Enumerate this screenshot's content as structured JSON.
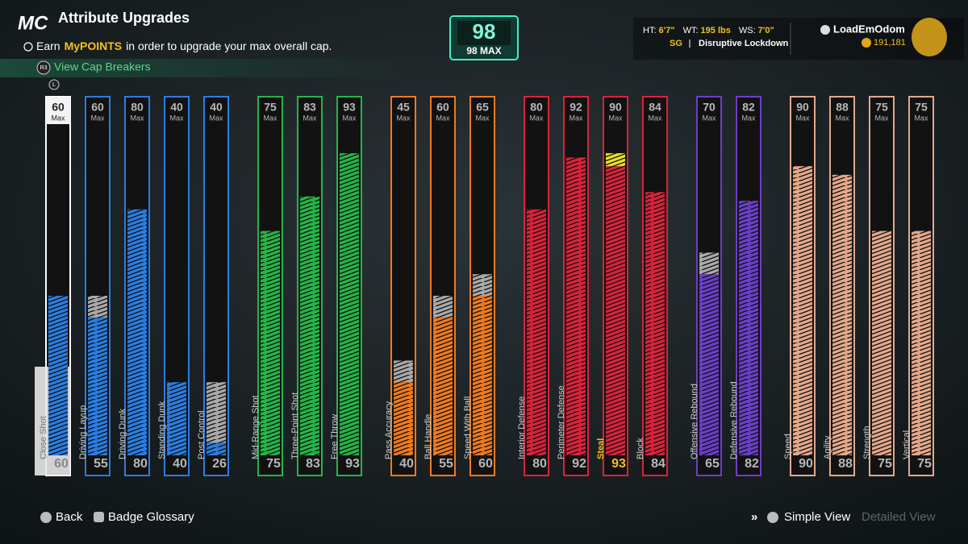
{
  "header": {
    "logo": "MC",
    "title": "Attribute Upgrades",
    "info": [
      "Earn",
      "MyPOINTS",
      "in order to upgrade your max overall cap."
    ],
    "cap_breakers": {
      "icon": "R3",
      "label": "View Cap Breakers"
    },
    "bumper": "L"
  },
  "overall": {
    "value": 98,
    "label": "98 MAX"
  },
  "player": {
    "height_label": "HT:",
    "height": "6'7\"",
    "weight_label": "WT:",
    "weight": "195 lbs",
    "wingspan_label": "WS:",
    "wingspan": "7'0\"",
    "position": "SG",
    "archetype": "Disruptive Lockdown",
    "name": "LoadEmOdom",
    "currency": "191,181"
  },
  "max_label": "Max",
  "groups": [
    {
      "color": "#2a7de1",
      "attributes": [
        {
          "name": "Close Shot",
          "max": 60,
          "current": 60
        },
        {
          "name": "Driving Layup",
          "max": 60,
          "current": 55
        },
        {
          "name": "Driving Dunk",
          "max": 80,
          "current": 80
        },
        {
          "name": "Standing Dunk",
          "max": 40,
          "current": 40
        },
        {
          "name": "Post Control",
          "max": 40,
          "current": 26
        }
      ]
    },
    {
      "color": "#25b548",
      "attributes": [
        {
          "name": "Mid-Range Shot",
          "max": 75,
          "current": 75
        },
        {
          "name": "Three-Point Shot",
          "max": 83,
          "current": 83
        },
        {
          "name": "Free Throw",
          "max": 93,
          "current": 93
        }
      ]
    },
    {
      "color": "#ef7a1f",
      "attributes": [
        {
          "name": "Pass Accuracy",
          "max": 45,
          "current": 40
        },
        {
          "name": "Ball Handle",
          "max": 60,
          "current": 55
        },
        {
          "name": "Speed With Ball",
          "max": 65,
          "current": 60
        }
      ]
    },
    {
      "color": "#d9233a",
      "attributes": [
        {
          "name": "Interior Defense",
          "max": 80,
          "current": 80
        },
        {
          "name": "Perimeter Defense",
          "max": 92,
          "current": 92
        },
        {
          "name": "Steal",
          "max": 90,
          "current": 93
        },
        {
          "name": "Block",
          "max": 84,
          "current": 84
        }
      ]
    },
    {
      "color": "#6b3ec9",
      "attributes": [
        {
          "name": "Offensive Rebound",
          "max": 70,
          "current": 65
        },
        {
          "name": "Defensive Rebound",
          "max": 82,
          "current": 82
        }
      ]
    },
    {
      "color": "#e3a88a",
      "attributes": [
        {
          "name": "Speed",
          "max": 90,
          "current": 90
        },
        {
          "name": "Agility",
          "max": 88,
          "current": 88
        },
        {
          "name": "Strength",
          "max": 75,
          "current": 75
        },
        {
          "name": "Vertical",
          "max": 75,
          "current": 75
        }
      ]
    }
  ],
  "footer": {
    "back": "Back",
    "glossary": "Badge Glossary",
    "simple": "Simple View",
    "detailed": "Detailed View"
  }
}
